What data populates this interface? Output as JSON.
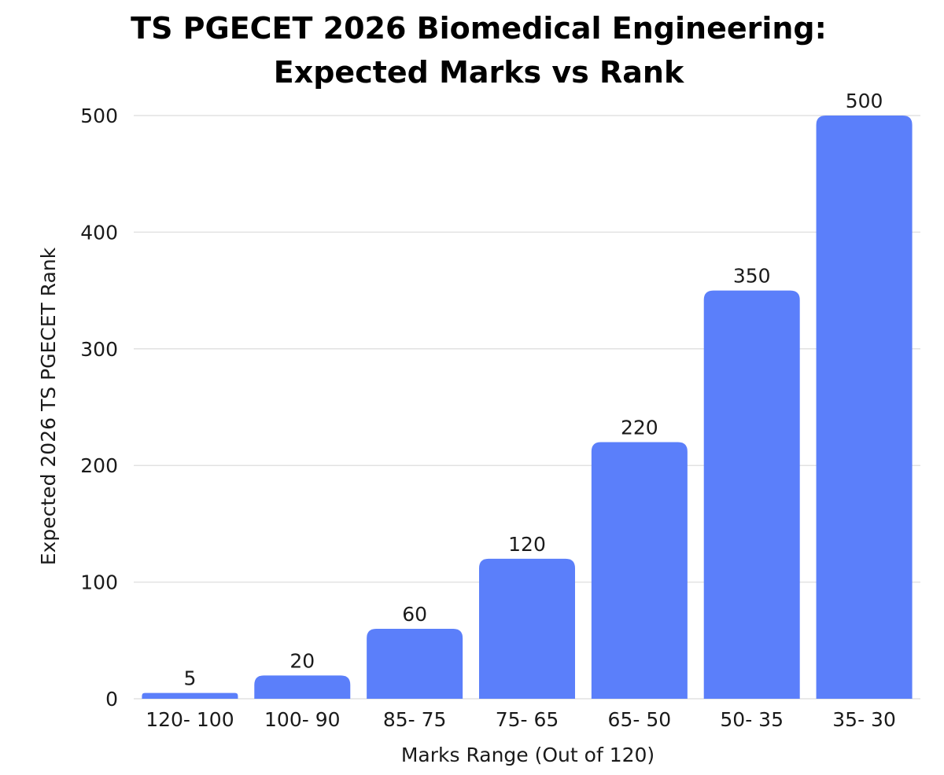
{
  "chart_data": {
    "type": "bar",
    "title_lines": [
      "TS PGECET 2026 Biomedical Engineering:",
      "Expected Marks vs Rank"
    ],
    "xlabel": "Marks Range (Out of 120)",
    "ylabel": "Expected 2026 TS PGECET Rank",
    "categories": [
      "120- 100",
      "100- 90",
      "85- 75",
      "75- 65",
      "65- 50",
      "50- 35",
      "35- 30"
    ],
    "values": [
      5,
      20,
      60,
      120,
      220,
      350,
      500
    ],
    "data_labels": [
      "5",
      "20",
      "60",
      "120",
      "220",
      "350",
      "500"
    ],
    "yticks": [
      0,
      100,
      200,
      300,
      400,
      500
    ],
    "ylim": [
      0,
      500
    ],
    "grid": true,
    "legend": "none",
    "colors": {
      "bar": "#5b7ffa",
      "grid": "#e2e2e2",
      "text": "#1a1a1a"
    }
  }
}
